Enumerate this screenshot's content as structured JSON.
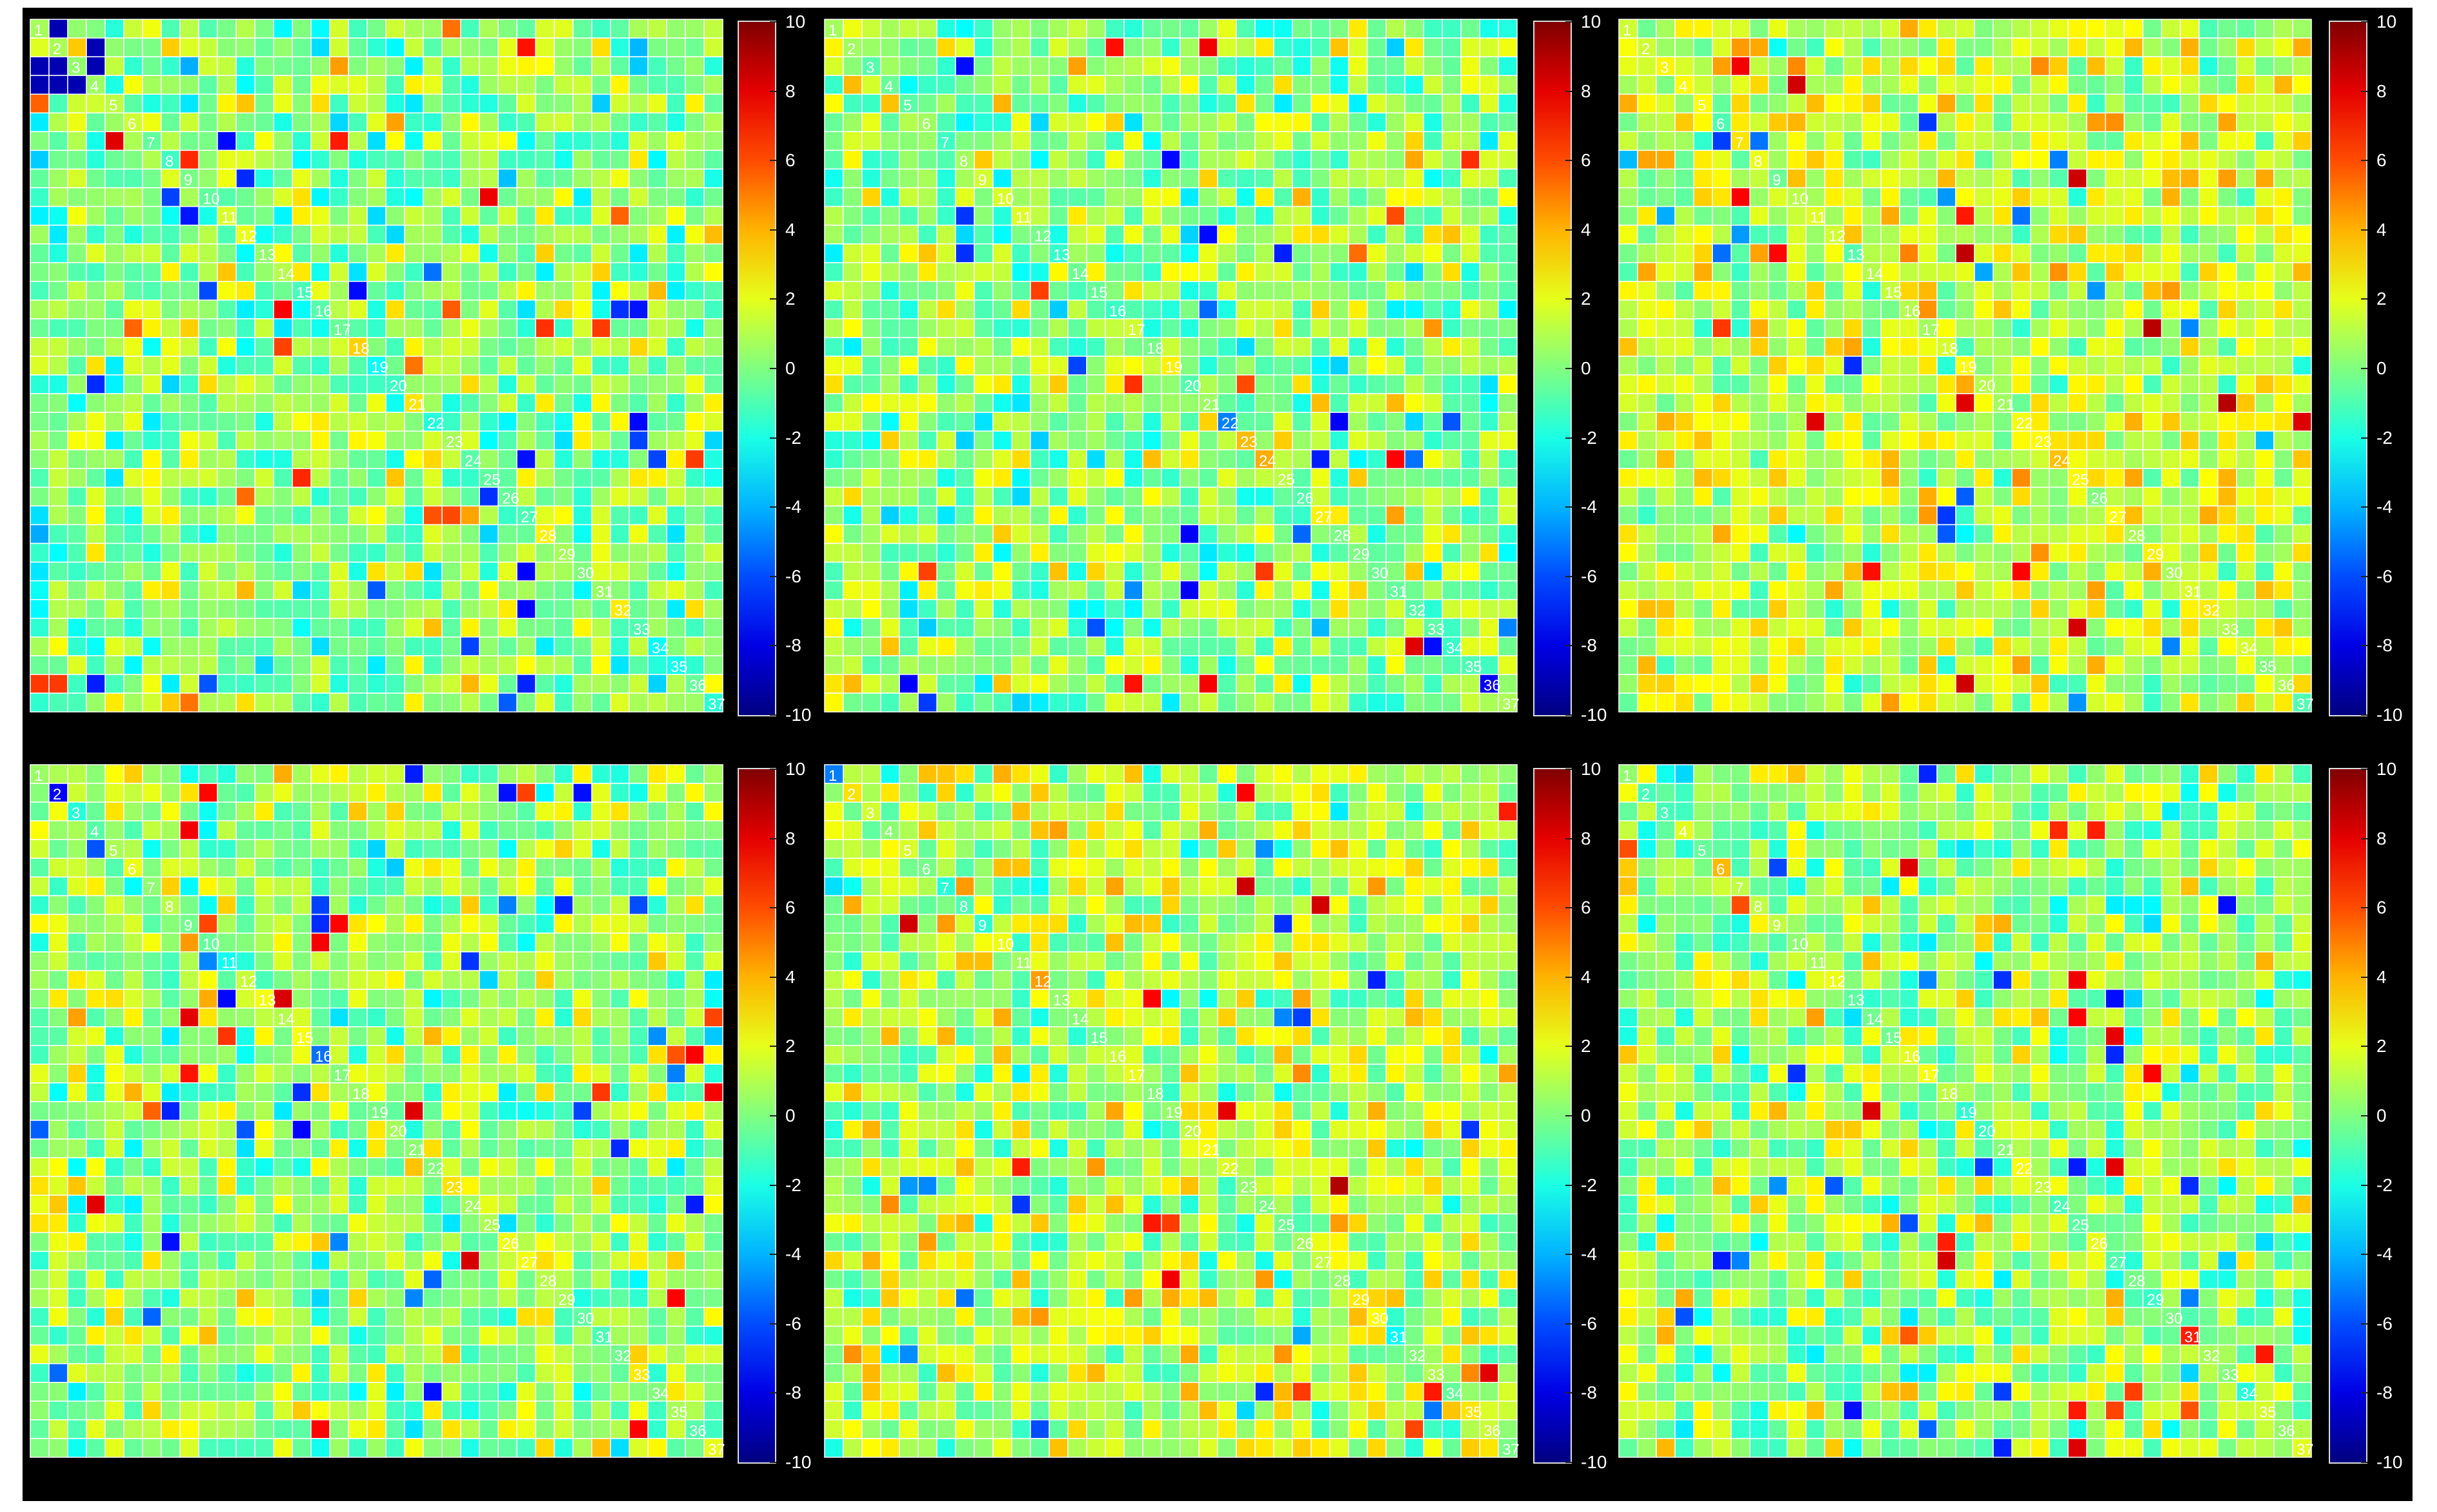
{
  "figure": {
    "background": "#000000",
    "grid_line_color": "#ffffff",
    "diag_label_color": "#ffffff"
  },
  "chart_data": [
    {
      "type": "heatmap",
      "panel": "top-left",
      "rows": 37,
      "cols": 37,
      "diagonal_labels": [
        "1",
        "2",
        "3",
        "4",
        "5",
        "6",
        "7",
        "8",
        "9",
        "10",
        "11",
        "12",
        "13",
        "14",
        "15",
        "16",
        "17",
        "18",
        "19",
        "20",
        "21",
        "22",
        "23",
        "24",
        "25",
        "26",
        "27",
        "28",
        "29",
        "30",
        "31",
        "32",
        "33",
        "34",
        "35",
        "36",
        "37"
      ],
      "colorbar": {
        "ticks": [
          "10",
          "8",
          "6",
          "4",
          "2",
          "0",
          "-2",
          "-4",
          "-6",
          "-8",
          "-10"
        ],
        "range": [
          -10,
          10
        ],
        "colormap": "jet"
      },
      "value_distribution": {
        "typical_range": [
          -3,
          4
        ],
        "note": "mostly near 0; scattered cells -4 to 6; a few deep blue -9 in top-left corner"
      }
    },
    {
      "type": "heatmap",
      "panel": "top-middle",
      "rows": 37,
      "cols": 37,
      "diagonal_labels": [
        "1",
        "2",
        "3",
        "4",
        "5",
        "6",
        "7",
        "8",
        "9",
        "10",
        "11",
        "12",
        "13",
        "14",
        "15",
        "16",
        "17",
        "18",
        "19",
        "20",
        "21",
        "22",
        "23",
        "24",
        "25",
        "26",
        "27",
        "28",
        "29",
        "30",
        "31",
        "32",
        "33",
        "34",
        "35",
        "36",
        "37"
      ],
      "colorbar": {
        "ticks": [
          "10",
          "8",
          "6",
          "4",
          "2",
          "0",
          "-2",
          "-4",
          "-6",
          "-8",
          "-10"
        ],
        "range": [
          -10,
          10
        ],
        "colormap": "jet"
      },
      "value_distribution": {
        "typical_range": [
          -3,
          4
        ],
        "note": "mostly near 0; scattered orange 5-6 and blue -5"
      }
    },
    {
      "type": "heatmap",
      "panel": "top-right",
      "rows": 37,
      "cols": 37,
      "diagonal_labels": [
        "1",
        "2",
        "3",
        "4",
        "5",
        "6",
        "7",
        "8",
        "9",
        "10",
        "11",
        "12",
        "13",
        "14",
        "15",
        "16",
        "17",
        "18",
        "19",
        "20",
        "21",
        "22",
        "23",
        "24",
        "25",
        "26",
        "27",
        "28",
        "29",
        "30",
        "31",
        "32",
        "33",
        "34",
        "35",
        "36",
        "37"
      ],
      "colorbar": {
        "ticks": [
          "10",
          "8",
          "6",
          "4",
          "2",
          "0",
          "-2",
          "-4",
          "-6",
          "-8",
          "-10"
        ],
        "range": [
          -10,
          10
        ],
        "colormap": "jet"
      },
      "value_distribution": {
        "typical_range": [
          -1,
          4
        ],
        "note": "shifted positive; many yellow/orange 2-6 cells"
      }
    },
    {
      "type": "heatmap",
      "panel": "bottom-left",
      "rows": 37,
      "cols": 37,
      "diagonal_labels": [
        "1",
        "2",
        "3",
        "4",
        "5",
        "6",
        "7",
        "8",
        "9",
        "10",
        "11",
        "12",
        "13",
        "14",
        "15",
        "16",
        "17",
        "18",
        "19",
        "20",
        "21",
        "22",
        "23",
        "24",
        "25",
        "26",
        "27",
        "28",
        "29",
        "30",
        "31",
        "32",
        "33",
        "34",
        "35",
        "36",
        "37"
      ],
      "colorbar": {
        "ticks": [
          "10",
          "8",
          "6",
          "4",
          "2",
          "0",
          "-2",
          "-4",
          "-6",
          "-8",
          "-10"
        ],
        "range": [
          -10,
          10
        ],
        "colormap": "jet"
      },
      "value_distribution": {
        "typical_range": [
          -3,
          4
        ],
        "note": "mostly near 0; few red cells near 8"
      }
    },
    {
      "type": "heatmap",
      "panel": "bottom-middle",
      "rows": 37,
      "cols": 37,
      "diagonal_labels": [
        "1",
        "2",
        "3",
        "4",
        "5",
        "6",
        "7",
        "8",
        "9",
        "10",
        "11",
        "12",
        "13",
        "14",
        "15",
        "16",
        "17",
        "18",
        "19",
        "20",
        "21",
        "22",
        "23",
        "24",
        "25",
        "26",
        "27",
        "28",
        "29",
        "30",
        "31",
        "32",
        "33",
        "34",
        "35",
        "36",
        "37"
      ],
      "colorbar": {
        "ticks": [
          "10",
          "8",
          "6",
          "4",
          "2",
          "0",
          "-2",
          "-4",
          "-6",
          "-8",
          "-10"
        ],
        "range": [
          -10,
          10
        ],
        "colormap": "jet"
      },
      "value_distribution": {
        "typical_range": [
          -2,
          5
        ],
        "note": "positive bias in lower half; scattered red 8 and blue -5"
      }
    },
    {
      "type": "heatmap",
      "panel": "bottom-right",
      "rows": 37,
      "cols": 37,
      "diagonal_labels": [
        "1",
        "2",
        "3",
        "4",
        "5",
        "6",
        "7",
        "8",
        "9",
        "10",
        "11",
        "12",
        "13",
        "14",
        "15",
        "16",
        "17",
        "18",
        "19",
        "20",
        "21",
        "22",
        "23",
        "24",
        "25",
        "26",
        "27",
        "28",
        "29",
        "30",
        "31",
        "32",
        "33",
        "34",
        "35",
        "36",
        "37"
      ],
      "colorbar": {
        "ticks": [
          "10",
          "8",
          "6",
          "4",
          "2",
          "0",
          "-2",
          "-4",
          "-6",
          "-8",
          "-10"
        ],
        "range": [
          -10,
          10
        ],
        "colormap": "jet"
      },
      "value_distribution": {
        "typical_range": [
          -3,
          4
        ],
        "note": "mostly near 0; several red 8 cells in lower half"
      }
    }
  ]
}
